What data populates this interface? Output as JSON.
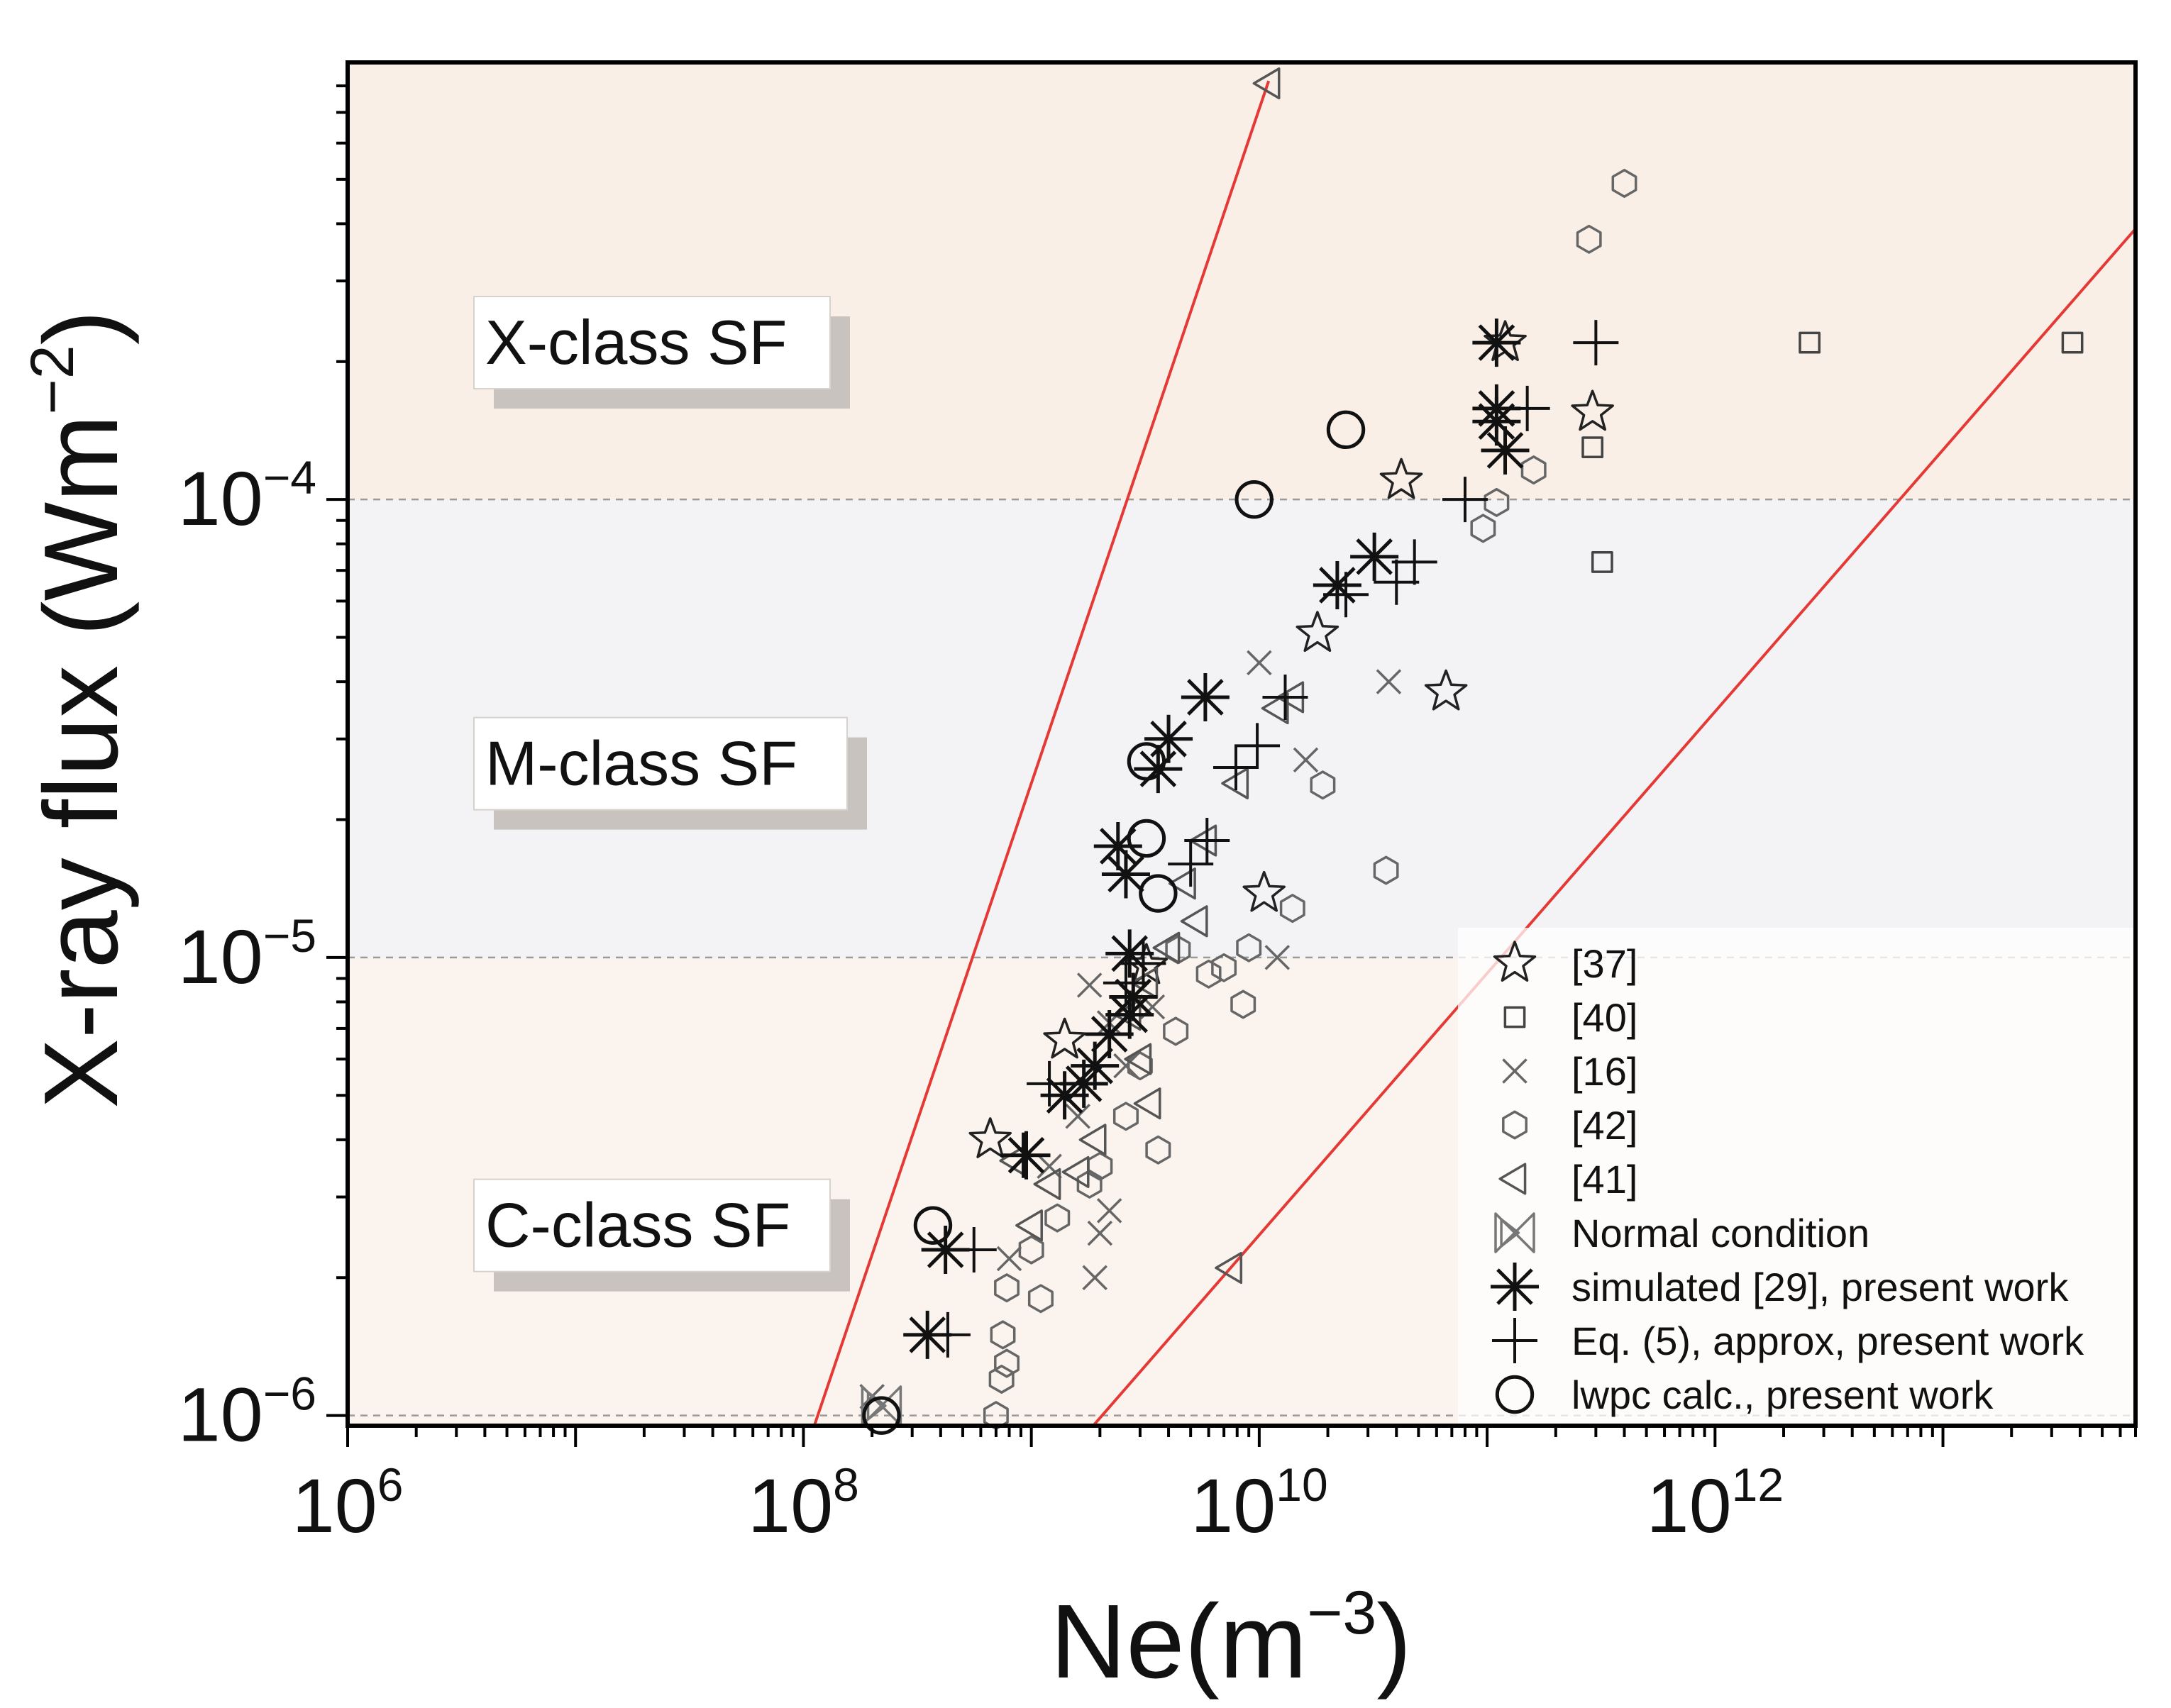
{
  "chart_data": {
    "type": "scatter",
    "xscale": "log",
    "yscale": "log",
    "xlim": [
      1000000,
      70000000000000
    ],
    "ylim": [
      9.5e-07,
      0.0009
    ],
    "xlabel": {
      "base": "Ne(m",
      "exp": "−3",
      "close": ")"
    },
    "ylabel": {
      "base": "X-ray flux (Wm",
      "exp": "−2",
      "close": ")"
    },
    "x_ticks": [
      {
        "value": 1000000,
        "base": "10",
        "exp": "6"
      },
      {
        "value": 100000000,
        "base": "10",
        "exp": "8"
      },
      {
        "value": 10000000000,
        "base": "10",
        "exp": "10"
      },
      {
        "value": 1000000000000,
        "base": "10",
        "exp": "12"
      }
    ],
    "y_ticks": [
      {
        "value": 1e-06,
        "base": "10",
        "exp": "−6"
      },
      {
        "value": 1e-05,
        "base": "10",
        "exp": "−5"
      },
      {
        "value": 0.0001,
        "base": "10",
        "exp": "−4"
      }
    ],
    "bands": [
      {
        "name": "C-class SF",
        "from": 9.5e-07,
        "to": 1e-05,
        "color": "#fbf4ee"
      },
      {
        "name": "M-class SF",
        "from": 1e-05,
        "to": 0.0001,
        "color": "#f3f3f5"
      },
      {
        "name": "X-class SF",
        "from": 0.0001,
        "to": 0.0009,
        "color": "#f9efe6"
      }
    ],
    "class_labels": [
      {
        "text": "X-class SF",
        "y": 0.00022
      },
      {
        "text": "M-class SF",
        "y": 2.65e-05
      },
      {
        "text": "C-class SF",
        "y": 2.6e-06
      }
    ],
    "boundary_lines": [
      {
        "color": "#e53935",
        "points": [
          [
            110000000,
            9.3e-07
          ],
          [
            11000000000,
            0.00082
          ]
        ]
      },
      {
        "color": "#e53935",
        "points": [
          [
            1800000000,
            9.3e-07
          ],
          [
            70000000000000,
            0.00039
          ]
        ]
      }
    ],
    "legend": {
      "position": "bottom-right"
    },
    "series": [
      {
        "name": "[37]",
        "marker": "star",
        "color": "#222222",
        "points": [
          [
            120000000000,
            0.00022
          ],
          [
            290000000000,
            0.000155
          ],
          [
            42000000000,
            0.00011
          ],
          [
            18000000000,
            5.1e-05
          ],
          [
            66000000000,
            3.8e-05
          ],
          [
            10500000000,
            1.38e-05
          ],
          [
            3200000000,
            9.6e-06
          ],
          [
            1400000000,
            6.6e-06
          ],
          [
            660000000,
            4e-06
          ]
        ]
      },
      {
        "name": "[40]",
        "marker": "square",
        "color": "#444444",
        "points": [
          [
            2600000000000,
            0.00022
          ],
          [
            37000000000000,
            0.00022
          ],
          [
            290000000000,
            0.00013
          ],
          [
            320000000000,
            7.3e-05
          ]
        ]
      },
      {
        "name": "[16]",
        "marker": "x",
        "color": "#666666",
        "points": [
          [
            10000000000,
            4.4e-05
          ],
          [
            37000000000,
            4e-05
          ],
          [
            16000000000,
            2.7e-05
          ],
          [
            12000000000,
            1e-05
          ],
          [
            1800000000,
            8.7e-06
          ],
          [
            2200000000,
            7.2e-06
          ],
          [
            2600000000,
            5.8e-06
          ],
          [
            1600000000,
            4.5e-06
          ],
          [
            2200000000,
            2.8e-06
          ],
          [
            2000000000,
            2.5e-06
          ],
          [
            1900000000,
            2e-06
          ],
          [
            1200000000,
            3.5e-06
          ],
          [
            3400000000,
            7.8e-06
          ],
          [
            800000000,
            2.2e-06
          ],
          [
            200000000,
            1.1e-06
          ]
        ]
      },
      {
        "name": "[42]",
        "marker": "hexagon",
        "color": "#666666",
        "points": [
          [
            400000000000,
            0.00049
          ],
          [
            280000000000,
            0.00037
          ],
          [
            160000000000,
            0.000116
          ],
          [
            110000000000,
            9.85e-05
          ],
          [
            96000000000,
            8.65e-05
          ],
          [
            19000000000,
            2.38e-05
          ],
          [
            36000000000,
            1.55e-05
          ],
          [
            14000000000,
            1.28e-05
          ],
          [
            9000000000,
            1.05e-05
          ],
          [
            7000000000,
            9.5e-06
          ],
          [
            6000000000,
            9.2e-06
          ],
          [
            8500000000,
            7.9e-06
          ],
          [
            4300000000,
            6.9e-06
          ],
          [
            3000000000,
            5.8e-06
          ],
          [
            2600000000,
            4.5e-06
          ],
          [
            3600000000,
            3.8e-06
          ],
          [
            2000000000,
            3.5e-06
          ],
          [
            1800000000,
            3.2e-06
          ],
          [
            1300000000,
            2.7e-06
          ],
          [
            1000000000,
            2.3e-06
          ],
          [
            780000000,
            1.9e-06
          ],
          [
            1100000000,
            1.8e-06
          ],
          [
            750000000,
            1.5e-06
          ],
          [
            780000000,
            1.3e-06
          ],
          [
            740000000,
            1.2e-06
          ],
          [
            700000000,
            1e-06
          ],
          [
            4400000000,
            1.04e-05
          ]
        ]
      },
      {
        "name": "[41]",
        "marker": "triangle-left",
        "color": "#555555",
        "points": [
          [
            11000000000,
            0.00081
          ],
          [
            14000000000,
            3.7e-05
          ],
          [
            12000000000,
            3.5e-05
          ],
          [
            8000000000,
            2.4e-05
          ],
          [
            5800000000,
            1.8e-05
          ],
          [
            4700000000,
            1.45e-05
          ],
          [
            5300000000,
            1.2e-05
          ],
          [
            4000000000,
            1.05e-05
          ],
          [
            3200000000,
            8.8e-06
          ],
          [
            2700000000,
            7.5e-06
          ],
          [
            3000000000,
            6e-06
          ],
          [
            3300000000,
            4.8e-06
          ],
          [
            1900000000,
            4e-06
          ],
          [
            1600000000,
            3.4e-06
          ],
          [
            1200000000,
            3.2e-06
          ],
          [
            1000000000,
            2.6e-06
          ],
          [
            7500000000,
            2.1e-06
          ],
          [
            850000000,
            3.6e-06
          ]
        ]
      },
      {
        "name": "Normal condition",
        "marker": "bowtie",
        "color": "#777777",
        "points": [
          [
            220000000,
            1.05e-06
          ]
        ]
      },
      {
        "name": "simulated [29], present work",
        "marker": "asterisk",
        "color": "#111111",
        "points": [
          [
            110000000000,
            0.00022
          ],
          [
            110000000000,
            0.000158
          ],
          [
            110000000000,
            0.000148
          ],
          [
            120000000000,
            0.000128
          ],
          [
            32000000000,
            7.5e-05
          ],
          [
            22000000000,
            6.5e-05
          ],
          [
            5800000000,
            3.7e-05
          ],
          [
            4000000000,
            3e-05
          ],
          [
            3600000000,
            2.58e-05
          ],
          [
            2400000000,
            1.75e-05
          ],
          [
            2600000000,
            1.52e-05
          ],
          [
            2700000000,
            1.02e-05
          ],
          [
            2800000000,
            8.2e-06
          ],
          [
            2700000000,
            7.5e-06
          ],
          [
            2200000000,
            6.8e-06
          ],
          [
            1900000000,
            5.8e-06
          ],
          [
            1700000000,
            5.3e-06
          ],
          [
            1400000000,
            5e-06
          ],
          [
            950000000,
            3.7e-06
          ],
          [
            420000000,
            2.3e-06
          ],
          [
            350000000,
            1.5e-06
          ]
        ]
      },
      {
        "name": "Eq. (5), approx, present work",
        "marker": "plus",
        "color": "#111111",
        "points": [
          [
            300000000000,
            0.00022
          ],
          [
            150000000000,
            0.000158
          ],
          [
            80000000000,
            0.0001
          ],
          [
            48000000000,
            7.3e-05
          ],
          [
            40000000000,
            6.6e-05
          ],
          [
            24000000000,
            6.2e-05
          ],
          [
            13000000000,
            3.7e-05
          ],
          [
            9800000000,
            2.9e-05
          ],
          [
            7900000000,
            2.6e-05
          ],
          [
            5900000000,
            1.8e-05
          ],
          [
            5000000000,
            1.6e-05
          ],
          [
            3100000000,
            9.7e-06
          ],
          [
            2600000000,
            8.8e-06
          ],
          [
            1700000000,
            5.3e-06
          ],
          [
            1200000000,
            5.3e-06
          ],
          [
            920000000,
            3.7e-06
          ],
          [
            560000000,
            2.3e-06
          ],
          [
            430000000,
            1.5e-06
          ]
        ]
      },
      {
        "name": "lwpc calc., present work",
        "marker": "circle",
        "color": "#111111",
        "points": [
          [
            24000000000,
            0.000142
          ],
          [
            9500000000,
            0.0001
          ],
          [
            3200000000,
            2.68e-05
          ],
          [
            3200000000,
            1.82e-05
          ],
          [
            3600000000,
            1.38e-05
          ],
          [
            370000000,
            2.6e-06
          ],
          [
            220000000,
            1e-06
          ]
        ]
      }
    ]
  }
}
